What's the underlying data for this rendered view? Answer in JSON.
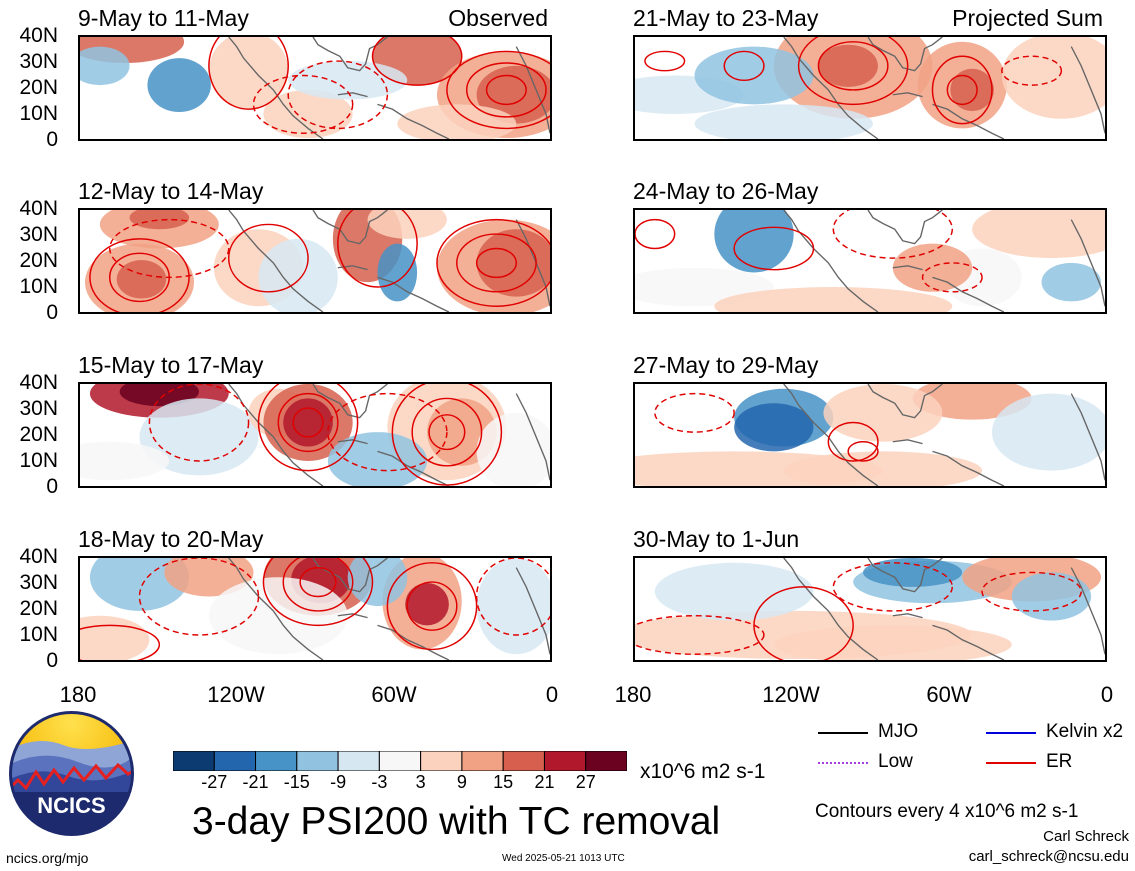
{
  "panels": [
    {
      "title": "9-May to 11-May",
      "tag": "Observed"
    },
    {
      "title": "21-May to 23-May",
      "tag": "Projected Sum"
    },
    {
      "title": "12-May to 14-May",
      "tag": ""
    },
    {
      "title": "24-May to 26-May",
      "tag": ""
    },
    {
      "title": "15-May to 17-May",
      "tag": ""
    },
    {
      "title": "27-May to 29-May",
      "tag": ""
    },
    {
      "title": "18-May to 20-May",
      "tag": ""
    },
    {
      "title": "30-May to 1-Jun",
      "tag": ""
    }
  ],
  "y_ticks": [
    "40N",
    "30N",
    "20N",
    "10N",
    "0"
  ],
  "x_ticks": [
    "180",
    "120W",
    "60W",
    "0"
  ],
  "colorbar": {
    "labels": [
      "-27",
      "-21",
      "-15",
      "-9",
      "-3",
      "3",
      "9",
      "15",
      "21",
      "27"
    ],
    "colors": [
      "#0b3b70",
      "#2466ae",
      "#4792c6",
      "#91c3e1",
      "#d6e7f2",
      "#f7f7f7",
      "#fbd2bd",
      "#f1a285",
      "#d6604d",
      "#b2182b",
      "#6a0220"
    ],
    "units": "x10^6 m2 s-1"
  },
  "legend": {
    "items": [
      {
        "label": "MJO",
        "color": "#000000"
      },
      {
        "label": "Kelvin x2",
        "color": "#0000dd"
      },
      {
        "label": "Low",
        "color": "#a040e0"
      },
      {
        "label": "ER",
        "color": "#e00000"
      }
    ],
    "contour_note": "Contours every 4 x10^6 m2 s-1"
  },
  "main_title": "3-day PSI200 with TC removal",
  "author": "Carl Schreck",
  "email": "carl_schreck@ncsu.edu",
  "url": "ncics.org/mjo",
  "timestamp": "Wed 2025-05-21 1013 UTC",
  "logo_text": "NCICS"
}
